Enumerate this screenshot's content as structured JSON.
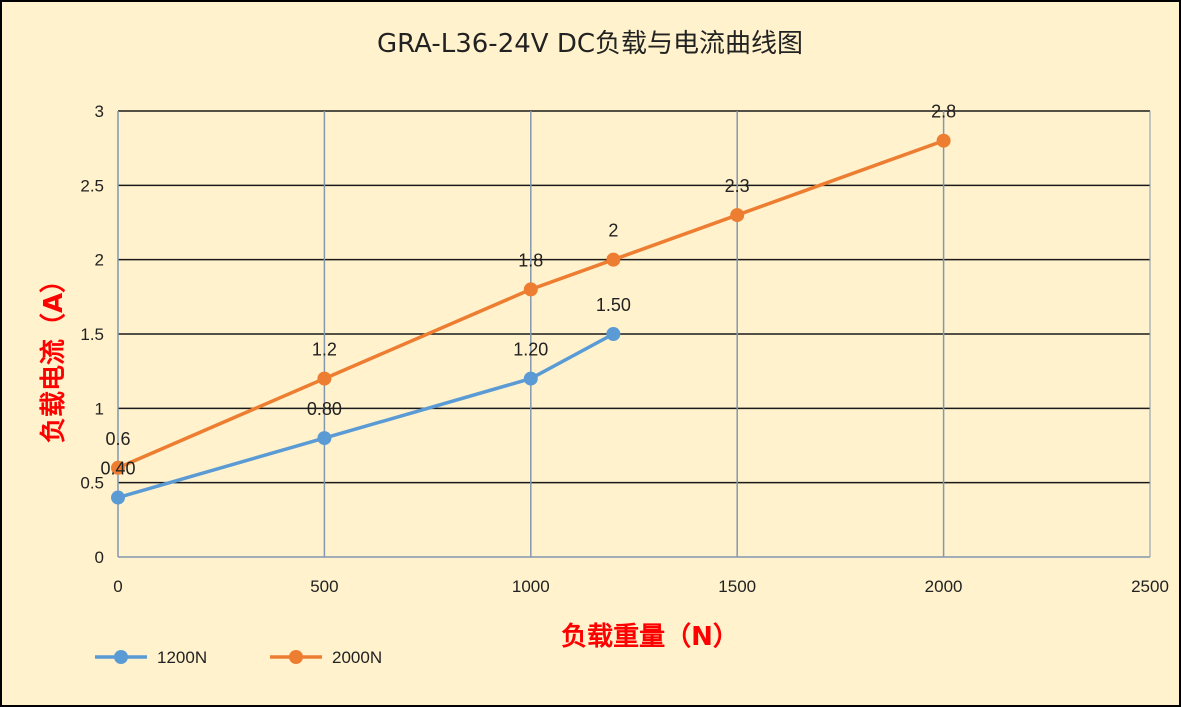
{
  "chart_data": {
    "type": "line",
    "title": "GRA-L36-24V DC负载与电流曲线图",
    "xlabel": "负载重量（N）",
    "ylabel": "负载电流（A）",
    "xlim": [
      0,
      2500
    ],
    "ylim": [
      0,
      3
    ],
    "x_ticks": [
      0,
      500,
      1000,
      1500,
      2000,
      2500
    ],
    "y_ticks": [
      0,
      0.5,
      1,
      1.5,
      2,
      2.5,
      3
    ],
    "x_tick_labels": [
      "0",
      "500",
      "1000",
      "1500",
      "2000",
      "2500"
    ],
    "y_tick_labels": [
      "0",
      "0.5",
      "1",
      "1.5",
      "2",
      "2.5",
      "3"
    ],
    "grid": true,
    "legend_position": "bottom-left",
    "background_color": "#fff2cc",
    "series": [
      {
        "name": "1200N",
        "color": "#5b9bd5",
        "x": [
          0,
          500,
          1000,
          1200
        ],
        "y": [
          0.4,
          0.8,
          1.2,
          1.5
        ],
        "labels": [
          "0.40",
          "0.80",
          "1.20",
          "1.50"
        ]
      },
      {
        "name": "2000N",
        "color": "#ed7d31",
        "x": [
          0,
          500,
          1000,
          1200,
          1500,
          2000
        ],
        "y": [
          0.6,
          1.2,
          1.8,
          2.0,
          2.3,
          2.8
        ],
        "labels": [
          "0.6",
          "1.2",
          "1.8",
          "2",
          "2.3",
          "2.8"
        ]
      }
    ],
    "axis_title_color": "#ff0000"
  }
}
